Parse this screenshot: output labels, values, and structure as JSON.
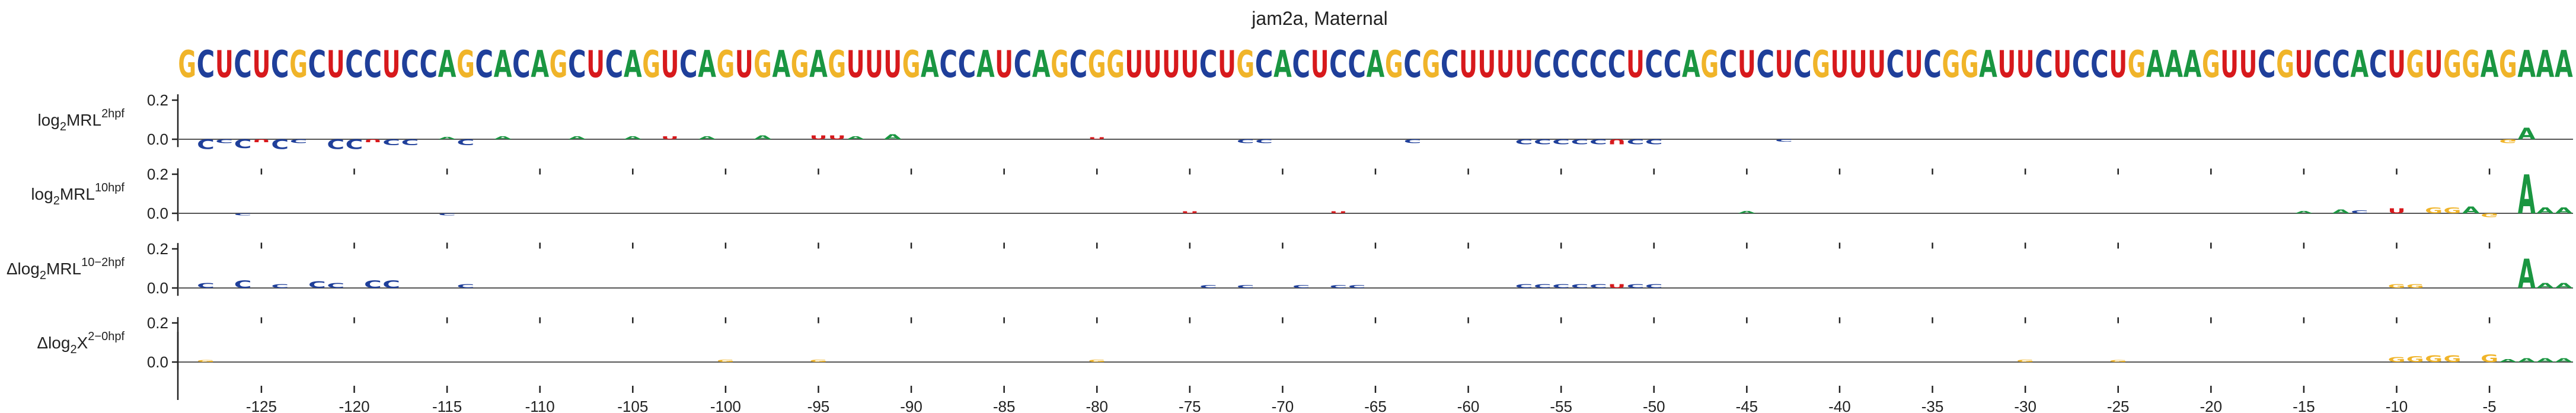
{
  "chart_data": {
    "type": "sequence-logo",
    "title": "jam2a, Maternal",
    "sequence": "GCUCUCGCUCCUCCAGCACAGCUCAGUCAGUGAGAGUUUGACCAUCAGCGGUUUUCUGCACUCCAGCGCUUUUCCCCCUCCAGCUCUCGUUUCUCGGAUUCUCCUGAAAGUUCGUCCACUGUGGAGAAA",
    "x_start": -129,
    "x_end": -1,
    "xticks": [
      -125,
      -120,
      -115,
      -110,
      -105,
      -100,
      -95,
      -90,
      -85,
      -80,
      -75,
      -70,
      -65,
      -60,
      -55,
      -50,
      -45,
      -40,
      -35,
      -30,
      -25,
      -20,
      -15,
      -10,
      -5
    ],
    "colors": {
      "A": "#1a9641",
      "C": "#1f3f9a",
      "G": "#f0b429",
      "U": "#d7191c"
    },
    "tracks": [
      {
        "label_base": "log",
        "label_sub": "2",
        "label_main": "MRL",
        "label_sup": "2hpf",
        "label_prefix": "",
        "yticks": [
          "0.2",
          "0.0"
        ],
        "ylim": [
          -0.1,
          0.25
        ],
        "marks": [
          {
            "x": -128,
            "base": "C",
            "value": -0.05
          },
          {
            "x": -127,
            "base": "C",
            "value": -0.02
          },
          {
            "x": -126,
            "base": "C",
            "value": -0.045
          },
          {
            "x": -125,
            "base": "U",
            "value": -0.015
          },
          {
            "x": -124,
            "base": "C",
            "value": -0.05
          },
          {
            "x": -123,
            "base": "C",
            "value": -0.02
          },
          {
            "x": -121,
            "base": "C",
            "value": -0.05
          },
          {
            "x": -120,
            "base": "C",
            "value": -0.05
          },
          {
            "x": -119,
            "base": "U",
            "value": -0.015
          },
          {
            "x": -118,
            "base": "C",
            "value": -0.03
          },
          {
            "x": -117,
            "base": "C",
            "value": -0.03
          },
          {
            "x": -115,
            "base": "A",
            "value": 0.012
          },
          {
            "x": -114,
            "base": "C",
            "value": -0.03
          },
          {
            "x": -112,
            "base": "A",
            "value": 0.015
          },
          {
            "x": -108,
            "base": "A",
            "value": 0.015
          },
          {
            "x": -105,
            "base": "A",
            "value": 0.015
          },
          {
            "x": -103,
            "base": "U",
            "value": 0.015
          },
          {
            "x": -101,
            "base": "A",
            "value": 0.015
          },
          {
            "x": -98,
            "base": "A",
            "value": 0.02
          },
          {
            "x": -95,
            "base": "U",
            "value": 0.02
          },
          {
            "x": -94,
            "base": "U",
            "value": 0.02
          },
          {
            "x": -93,
            "base": "A",
            "value": 0.015
          },
          {
            "x": -91,
            "base": "A",
            "value": 0.025
          },
          {
            "x": -80,
            "base": "U",
            "value": 0.01
          },
          {
            "x": -72,
            "base": "C",
            "value": -0.02
          },
          {
            "x": -71,
            "base": "C",
            "value": -0.02
          },
          {
            "x": -63,
            "base": "C",
            "value": -0.02
          },
          {
            "x": -57,
            "base": "C",
            "value": -0.025
          },
          {
            "x": -56,
            "base": "C",
            "value": -0.025
          },
          {
            "x": -55,
            "base": "C",
            "value": -0.025
          },
          {
            "x": -54,
            "base": "C",
            "value": -0.025
          },
          {
            "x": -53,
            "base": "C",
            "value": -0.025
          },
          {
            "x": -52,
            "base": "U",
            "value": -0.025
          },
          {
            "x": -51,
            "base": "C",
            "value": -0.025
          },
          {
            "x": -50,
            "base": "C",
            "value": -0.025
          },
          {
            "x": -43,
            "base": "C",
            "value": -0.012
          },
          {
            "x": -3,
            "base": "A",
            "value": 0.06
          },
          {
            "x": -4,
            "base": "G",
            "value": -0.02
          }
        ]
      },
      {
        "label_base": "log",
        "label_sub": "2",
        "label_main": "MRL",
        "label_sup": "10hpf",
        "label_prefix": "",
        "yticks": [
          "0.2",
          "0.0"
        ],
        "ylim": [
          -0.1,
          0.25
        ],
        "marks": [
          {
            "x": -126,
            "base": "C",
            "value": -0.01
          },
          {
            "x": -115,
            "base": "C",
            "value": -0.01
          },
          {
            "x": -75,
            "base": "U",
            "value": 0.01
          },
          {
            "x": -67,
            "base": "U",
            "value": 0.01
          },
          {
            "x": -45,
            "base": "A",
            "value": 0.012
          },
          {
            "x": -15,
            "base": "A",
            "value": 0.012
          },
          {
            "x": -13,
            "base": "A",
            "value": 0.02
          },
          {
            "x": -12,
            "base": "C",
            "value": 0.015
          },
          {
            "x": -10,
            "base": "U",
            "value": 0.025
          },
          {
            "x": -8,
            "base": "G",
            "value": 0.03
          },
          {
            "x": -7,
            "base": "G",
            "value": 0.03
          },
          {
            "x": -6,
            "base": "A",
            "value": 0.035
          },
          {
            "x": -5,
            "base": "G",
            "value": -0.02
          },
          {
            "x": -3,
            "base": "A",
            "value": 0.2
          },
          {
            "x": -2,
            "base": "A",
            "value": 0.03
          },
          {
            "x": -1,
            "base": "A",
            "value": 0.03
          }
        ]
      },
      {
        "label_base": "log",
        "label_sub": "2",
        "label_main": "MRL",
        "label_sup": "10−2hpf",
        "label_prefix": "Δ",
        "yticks": [
          "0.2",
          "0.0"
        ],
        "ylim": [
          -0.1,
          0.25
        ],
        "marks": [
          {
            "x": -128,
            "base": "C",
            "value": 0.025
          },
          {
            "x": -126,
            "base": "C",
            "value": 0.04
          },
          {
            "x": -124,
            "base": "C",
            "value": 0.02
          },
          {
            "x": -122,
            "base": "C",
            "value": 0.035
          },
          {
            "x": -121,
            "base": "C",
            "value": 0.025
          },
          {
            "x": -119,
            "base": "C",
            "value": 0.04
          },
          {
            "x": -118,
            "base": "C",
            "value": 0.04
          },
          {
            "x": -114,
            "base": "C",
            "value": 0.02
          },
          {
            "x": -74,
            "base": "C",
            "value": 0.015
          },
          {
            "x": -72,
            "base": "C",
            "value": 0.015
          },
          {
            "x": -69,
            "base": "C",
            "value": 0.015
          },
          {
            "x": -67,
            "base": "C",
            "value": 0.015
          },
          {
            "x": -66,
            "base": "C",
            "value": 0.015
          },
          {
            "x": -57,
            "base": "C",
            "value": 0.02
          },
          {
            "x": -56,
            "base": "C",
            "value": 0.02
          },
          {
            "x": -55,
            "base": "C",
            "value": 0.02
          },
          {
            "x": -54,
            "base": "C",
            "value": 0.02
          },
          {
            "x": -53,
            "base": "C",
            "value": 0.02
          },
          {
            "x": -52,
            "base": "U",
            "value": 0.02
          },
          {
            "x": -51,
            "base": "C",
            "value": 0.02
          },
          {
            "x": -50,
            "base": "C",
            "value": 0.02
          },
          {
            "x": -10,
            "base": "G",
            "value": 0.02
          },
          {
            "x": -9,
            "base": "G",
            "value": 0.02
          },
          {
            "x": -3,
            "base": "A",
            "value": 0.15
          },
          {
            "x": -2,
            "base": "A",
            "value": 0.025
          },
          {
            "x": -1,
            "base": "A",
            "value": 0.025
          }
        ]
      },
      {
        "label_base": "",
        "label_sub": "2",
        "label_main": "X",
        "label_sup": "2−0hpf",
        "label_prefix": "Δlog",
        "yticks": [
          "0.2",
          "0.0"
        ],
        "ylim": [
          -0.1,
          0.25
        ],
        "marks": [
          {
            "x": -128,
            "base": "G",
            "value": 0.01
          },
          {
            "x": -100,
            "base": "G",
            "value": 0.012
          },
          {
            "x": -95,
            "base": "G",
            "value": 0.012
          },
          {
            "x": -80,
            "base": "G",
            "value": 0.012
          },
          {
            "x": -30,
            "base": "G",
            "value": 0.012
          },
          {
            "x": -25,
            "base": "G",
            "value": 0.01
          },
          {
            "x": -10,
            "base": "G",
            "value": 0.025
          },
          {
            "x": -9,
            "base": "G",
            "value": 0.03
          },
          {
            "x": -8,
            "base": "G",
            "value": 0.035
          },
          {
            "x": -7,
            "base": "G",
            "value": 0.035
          },
          {
            "x": -5,
            "base": "G",
            "value": 0.04
          },
          {
            "x": -4,
            "base": "A",
            "value": 0.015
          },
          {
            "x": -3,
            "base": "A",
            "value": 0.02
          },
          {
            "x": -2,
            "base": "A",
            "value": 0.02
          },
          {
            "x": -1,
            "base": "A",
            "value": 0.02
          }
        ]
      }
    ]
  }
}
